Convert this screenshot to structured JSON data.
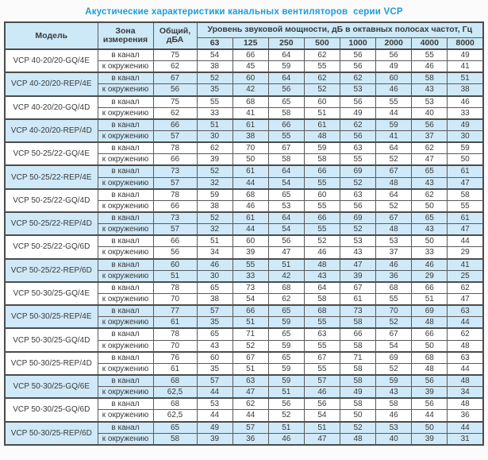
{
  "title": "Акустические характеристики канальных вентиляторов  серии VCP",
  "table": {
    "col_model": "Модель",
    "col_zone": "Зона измерения",
    "col_total": "Общий, дБА",
    "col_spl": "Уровень звуковой мощности, дБ в октавных полосах частот, Гц",
    "frequencies": [
      "63",
      "125",
      "250",
      "500",
      "1000",
      "2000",
      "4000",
      "8000"
    ],
    "groups": [
      {
        "model": "VCP 40-20/20-GQ/4E",
        "shaded": false,
        "rows": [
          {
            "zone": "в канал",
            "total": "75",
            "levels": [
              "54",
              "66",
              "64",
              "62",
              "56",
              "56",
              "55",
              "49"
            ]
          },
          {
            "zone": "к окружению",
            "total": "62",
            "levels": [
              "38",
              "45",
              "59",
              "55",
              "56",
              "49",
              "46",
              "41"
            ]
          }
        ]
      },
      {
        "model": "VCP 40-20/20-REP/4E",
        "shaded": true,
        "rows": [
          {
            "zone": "в канал",
            "total": "67",
            "levels": [
              "52",
              "60",
              "64",
              "62",
              "62",
              "60",
              "58",
              "51"
            ]
          },
          {
            "zone": "к окружению",
            "total": "56",
            "levels": [
              "35",
              "42",
              "56",
              "52",
              "53",
              "46",
              "43",
              "38"
            ]
          }
        ]
      },
      {
        "model": "VCP 40-20/20-GQ/4D",
        "shaded": false,
        "rows": [
          {
            "zone": "в канал",
            "total": "75",
            "levels": [
              "55",
              "68",
              "65",
              "60",
              "56",
              "55",
              "53",
              "46"
            ]
          },
          {
            "zone": "к окружению",
            "total": "62",
            "levels": [
              "33",
              "41",
              "58",
              "51",
              "49",
              "44",
              "40",
              "33"
            ]
          }
        ]
      },
      {
        "model": "VCP 40-20/20-REP/4D",
        "shaded": true,
        "rows": [
          {
            "zone": "в канал",
            "total": "66",
            "levels": [
              "51",
              "61",
              "66",
              "61",
              "62",
              "59",
              "56",
              "49"
            ]
          },
          {
            "zone": "к окружению",
            "total": "57",
            "levels": [
              "30",
              "38",
              "55",
              "48",
              "56",
              "41",
              "37",
              "30"
            ]
          }
        ]
      },
      {
        "model": "VCP 50-25/22-GQ/4E",
        "shaded": false,
        "rows": [
          {
            "zone": "в канал",
            "total": "78",
            "levels": [
              "62",
              "70",
              "67",
              "59",
              "63",
              "64",
              "62",
              "59"
            ]
          },
          {
            "zone": "к окружению",
            "total": "66",
            "levels": [
              "39",
              "50",
              "58",
              "58",
              "55",
              "52",
              "47",
              "50"
            ]
          }
        ]
      },
      {
        "model": "VCP 50-25/22-REP/4E",
        "shaded": true,
        "rows": [
          {
            "zone": "в канал",
            "total": "73",
            "levels": [
              "52",
              "61",
              "64",
              "66",
              "69",
              "67",
              "65",
              "61"
            ]
          },
          {
            "zone": "к окружению",
            "total": "57",
            "levels": [
              "32",
              "44",
              "54",
              "55",
              "52",
              "48",
              "43",
              "47"
            ]
          }
        ]
      },
      {
        "model": "VCP 50-25/22-GQ/4D",
        "shaded": false,
        "rows": [
          {
            "zone": "в канал",
            "total": "78",
            "levels": [
              "59",
              "68",
              "65",
              "60",
              "63",
              "64",
              "62",
              "58"
            ]
          },
          {
            "zone": "к окружению",
            "total": "66",
            "levels": [
              "38",
              "46",
              "53",
              "55",
              "56",
              "52",
              "50",
              "55"
            ]
          }
        ]
      },
      {
        "model": "VCP 50-25/22-REP/4D",
        "shaded": true,
        "rows": [
          {
            "zone": "в канал",
            "total": "73",
            "levels": [
              "52",
              "61",
              "64",
              "66",
              "69",
              "67",
              "65",
              "61"
            ]
          },
          {
            "zone": "к окружению",
            "total": "57",
            "levels": [
              "32",
              "44",
              "54",
              "55",
              "52",
              "48",
              "43",
              "47"
            ]
          }
        ]
      },
      {
        "model": "VCP 50-25/22-GQ/6D",
        "shaded": false,
        "rows": [
          {
            "zone": "в канал",
            "total": "66",
            "levels": [
              "51",
              "60",
              "56",
              "52",
              "53",
              "53",
              "50",
              "44"
            ]
          },
          {
            "zone": "к окружению",
            "total": "56",
            "levels": [
              "34",
              "39",
              "47",
              "46",
              "43",
              "37",
              "33",
              "29"
            ]
          }
        ]
      },
      {
        "model": "VCP 50-25/22-REP/6D",
        "shaded": true,
        "rows": [
          {
            "zone": "в канал",
            "total": "60",
            "levels": [
              "46",
              "55",
              "51",
              "48",
              "47",
              "46",
              "46",
              "41"
            ]
          },
          {
            "zone": "к окружению",
            "total": "51",
            "levels": [
              "30",
              "33",
              "42",
              "43",
              "39",
              "36",
              "29",
              "25"
            ]
          }
        ]
      },
      {
        "model": "VCP 50-30/25-GQ/4E",
        "shaded": false,
        "rows": [
          {
            "zone": "в канал",
            "total": "78",
            "levels": [
              "65",
              "73",
              "68",
              "64",
              "67",
              "68",
              "66",
              "62"
            ]
          },
          {
            "zone": "к окружению",
            "total": "70",
            "levels": [
              "38",
              "54",
              "62",
              "58",
              "61",
              "55",
              "51",
              "47"
            ]
          }
        ]
      },
      {
        "model": "VCP 50-30/25-REP/4E",
        "shaded": true,
        "rows": [
          {
            "zone": "в канал",
            "total": "77",
            "levels": [
              "57",
              "66",
              "65",
              "68",
              "73",
              "70",
              "69",
              "63"
            ]
          },
          {
            "zone": "к окружению",
            "total": "61",
            "levels": [
              "35",
              "51",
              "59",
              "55",
              "58",
              "52",
              "48",
              "44"
            ]
          }
        ]
      },
      {
        "model": "VCP 50-30/25-GQ/4D",
        "shaded": false,
        "rows": [
          {
            "zone": "в канал",
            "total": "78",
            "levels": [
              "65",
              "71",
              "65",
              "63",
              "66",
              "67",
              "66",
              "62"
            ]
          },
          {
            "zone": "к окружению",
            "total": "70",
            "levels": [
              "43",
              "52",
              "59",
              "55",
              "58",
              "54",
              "50",
              "48"
            ]
          }
        ]
      },
      {
        "model": "VCP 50-30/25-REP/4D",
        "shaded": false,
        "rows": [
          {
            "zone": "в канал",
            "total": "76",
            "levels": [
              "60",
              "67",
              "65",
              "67",
              "71",
              "69",
              "68",
              "63"
            ]
          },
          {
            "zone": "к окружению",
            "total": "61",
            "levels": [
              "35",
              "51",
              "59",
              "55",
              "58",
              "52",
              "48",
              "44"
            ]
          }
        ]
      },
      {
        "model": "VCP 50-30/25-GQ/6E",
        "shaded": true,
        "rows": [
          {
            "zone": "в канал",
            "total": "68",
            "levels": [
              "57",
              "63",
              "59",
              "57",
              "58",
              "59",
              "56",
              "48"
            ]
          },
          {
            "zone": "к окружению",
            "total": "62,5",
            "levels": [
              "44",
              "47",
              "51",
              "46",
              "49",
              "43",
              "39",
              "34"
            ]
          }
        ]
      },
      {
        "model": "VCP 50-30/25-GQ/6D",
        "shaded": false,
        "rows": [
          {
            "zone": "в канал",
            "total": "68",
            "levels": [
              "53",
              "62",
              "56",
              "56",
              "58",
              "58",
              "56",
              "48"
            ]
          },
          {
            "zone": "к окружению",
            "total": "62,5",
            "levels": [
              "44",
              "44",
              "52",
              "54",
              "50",
              "46",
              "44",
              "36"
            ]
          }
        ]
      },
      {
        "model": "VCP 50-30/25-REP/6D",
        "shaded": true,
        "rows": [
          {
            "zone": "в канал",
            "total": "65",
            "levels": [
              "49",
              "57",
              "51",
              "51",
              "52",
              "53",
              "50",
              "44"
            ]
          },
          {
            "zone": "к окружению",
            "total": "58",
            "levels": [
              "39",
              "36",
              "46",
              "47",
              "48",
              "40",
              "39",
              "31"
            ]
          }
        ]
      }
    ]
  },
  "colors": {
    "title_blue": "#1b9ed9",
    "header_fill": "#cde9f7",
    "shaded_row_fill": "#cfe9f8",
    "border_dark": "#4c4c4c",
    "text": "#3a3a3a"
  }
}
